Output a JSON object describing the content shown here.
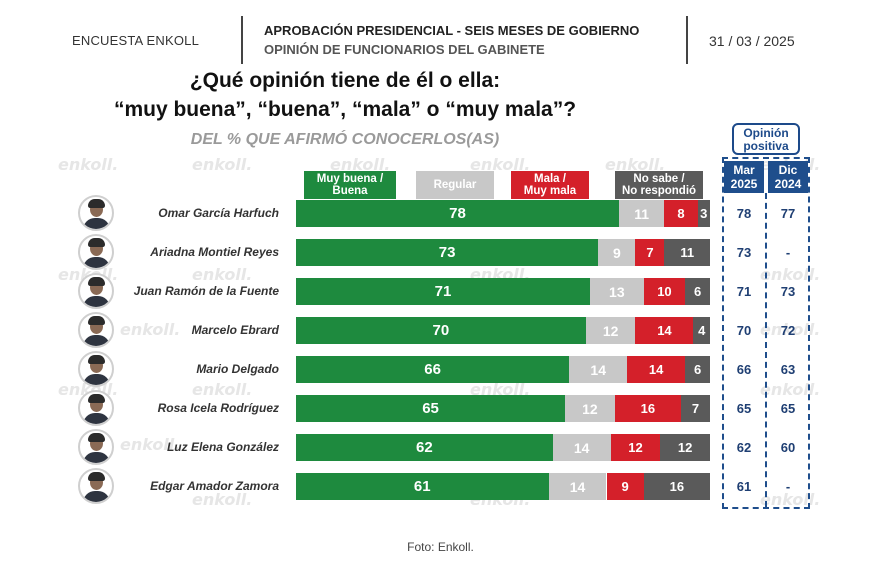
{
  "header": {
    "left_label": "ENCUESTA ENKOLL",
    "title": "APROBACIÓN PRESIDENCIAL - SEIS MESES DE GOBIERNO",
    "subtitle": "OPINIÓN DE FUNCIONARIOS DEL GABINETE",
    "date": "31 / 03 / 2025"
  },
  "question": {
    "line1": "¿Qué opinión tiene de él o ella:",
    "line2": "“muy buena”, “buena”, “mala” o “muy mala”?",
    "line3": "DEL % QUE AFIRMÓ CONOCERLOS(AS)"
  },
  "watermark_text": "enkoll.",
  "positive_panel": {
    "title_line1": "Opinión",
    "title_line2": "positiva",
    "col1_line1": "Mar",
    "col1_line2": "2025",
    "col2_line1": "Dic",
    "col2_line2": "2024"
  },
  "caption": "Foto: Enkoll.",
  "colors": {
    "muy_buena": "#1e8a3e",
    "regular": "#c8c8c8",
    "mala": "#d4202a",
    "no_sabe": "#5a5a5a",
    "panel_blue": "#1f4e8c"
  },
  "chart_data": {
    "type": "bar",
    "orientation": "horizontal",
    "stacked": true,
    "xlim": [
      0,
      100
    ],
    "categories": [
      "Omar García Harfuch",
      "Ariadna Montiel Reyes",
      "Juan Ramón de la Fuente",
      "Marcelo Ebrard",
      "Mario Delgado",
      "Rosa Icela Rodríguez",
      "Luz Elena González",
      "Edgar Amador Zamora"
    ],
    "series": [
      {
        "name": "Muy buena / Buena",
        "line1": "Muy buena /",
        "line2": "Buena",
        "color": "#1e8a3e",
        "values": [
          78,
          73,
          71,
          70,
          66,
          65,
          62,
          61
        ]
      },
      {
        "name": "Regular",
        "line1": "Regular",
        "line2": "",
        "color": "#c8c8c8",
        "values": [
          11,
          9,
          13,
          12,
          14,
          12,
          14,
          14
        ]
      },
      {
        "name": "Mala / Muy mala",
        "line1": "Mala /",
        "line2": "Muy mala",
        "color": "#d4202a",
        "values": [
          8,
          7,
          10,
          14,
          14,
          16,
          12,
          9
        ]
      },
      {
        "name": "No sabe / No respondió",
        "line1": "No sabe /",
        "line2": "No respondió",
        "color": "#5a5a5a",
        "values": [
          3,
          11,
          6,
          4,
          6,
          7,
          12,
          16
        ]
      }
    ],
    "opinion_positiva": {
      "Mar 2025": [
        "78",
        "73",
        "71",
        "70",
        "66",
        "65",
        "62",
        "61"
      ],
      "Dic 2024": [
        "77",
        "-",
        "73",
        "72",
        "63",
        "65",
        "60",
        "-"
      ]
    }
  }
}
